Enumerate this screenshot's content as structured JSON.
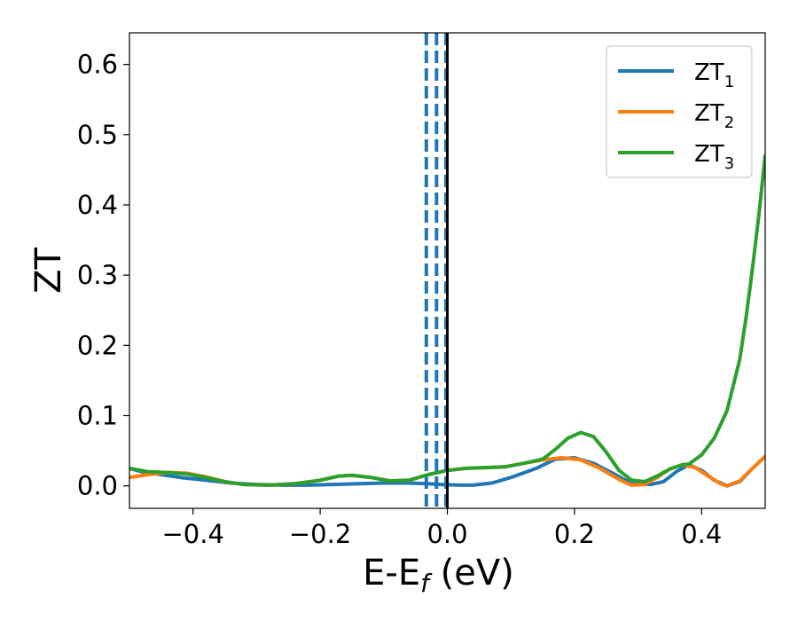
{
  "chart_data": {
    "type": "line",
    "xlabel_main": "E-E",
    "xlabel_sub": "f",
    "xlabel_rest": " (eV)",
    "ylabel": "ZT",
    "xlim": [
      -0.5,
      0.5
    ],
    "ylim": [
      -0.032,
      0.645
    ],
    "xticks": [
      -0.4,
      -0.2,
      0.0,
      0.2,
      0.4
    ],
    "xtick_labels": [
      "−0.4",
      "−0.2",
      "0.0",
      "0.2",
      "0.4"
    ],
    "yticks": [
      0.0,
      0.1,
      0.2,
      0.3,
      0.4,
      0.5,
      0.6
    ],
    "ytick_labels": [
      "0.0",
      "0.1",
      "0.2",
      "0.3",
      "0.4",
      "0.5",
      "0.6"
    ],
    "grid": false,
    "legend_position": "top-right",
    "vlines": [
      {
        "x": -0.033,
        "style": "dashed",
        "color": "#1f77b4"
      },
      {
        "x": -0.017,
        "style": "dashed",
        "color": "#1f77b4"
      },
      {
        "x": -0.002,
        "style": "dashed",
        "color": "#1f77b4"
      },
      {
        "x": 0.0,
        "style": "solid",
        "color": "#000000"
      }
    ],
    "series": [
      {
        "name": "ZT",
        "sub": "1",
        "color": "#1f77b4",
        "points": [
          [
            -0.5,
            0.025
          ],
          [
            -0.48,
            0.02
          ],
          [
            -0.45,
            0.016
          ],
          [
            -0.42,
            0.012
          ],
          [
            -0.38,
            0.008
          ],
          [
            -0.34,
            0.004
          ],
          [
            -0.3,
            0.002
          ],
          [
            -0.26,
            0.001
          ],
          [
            -0.22,
            0.001
          ],
          [
            -0.18,
            0.002
          ],
          [
            -0.14,
            0.003
          ],
          [
            -0.1,
            0.004
          ],
          [
            -0.06,
            0.004
          ],
          [
            -0.03,
            0.003
          ],
          [
            -0.01,
            0.002
          ],
          [
            0.02,
            0.001
          ],
          [
            0.04,
            0.001
          ],
          [
            0.07,
            0.004
          ],
          [
            0.1,
            0.012
          ],
          [
            0.14,
            0.025
          ],
          [
            0.17,
            0.038
          ],
          [
            0.2,
            0.04
          ],
          [
            0.23,
            0.032
          ],
          [
            0.26,
            0.018
          ],
          [
            0.28,
            0.008
          ],
          [
            0.3,
            0.003
          ],
          [
            0.32,
            0.002
          ],
          [
            0.34,
            0.006
          ],
          [
            0.36,
            0.02
          ],
          [
            0.38,
            0.03
          ],
          [
            0.4,
            0.022
          ],
          [
            0.42,
            0.008
          ],
          [
            0.44,
            0.0
          ],
          [
            0.46,
            0.006
          ],
          [
            0.48,
            0.025
          ],
          [
            0.5,
            0.042
          ]
        ]
      },
      {
        "name": "ZT",
        "sub": "2",
        "color": "#ff7f0e",
        "points": [
          [
            -0.5,
            0.012
          ],
          [
            -0.47,
            0.016
          ],
          [
            -0.44,
            0.019
          ],
          [
            -0.41,
            0.018
          ],
          [
            -0.38,
            0.013
          ],
          [
            -0.35,
            0.006
          ],
          [
            -0.32,
            0.002
          ],
          [
            -0.28,
            0.001
          ],
          [
            -0.24,
            0.003
          ],
          [
            -0.2,
            0.008
          ],
          [
            -0.17,
            0.014
          ],
          [
            -0.15,
            0.015
          ],
          [
            -0.12,
            0.012
          ],
          [
            -0.09,
            0.007
          ],
          [
            -0.06,
            0.008
          ],
          [
            -0.03,
            0.016
          ],
          [
            0.0,
            0.022
          ],
          [
            0.03,
            0.025
          ],
          [
            0.06,
            0.026
          ],
          [
            0.09,
            0.027
          ],
          [
            0.12,
            0.032
          ],
          [
            0.15,
            0.037
          ],
          [
            0.18,
            0.04
          ],
          [
            0.21,
            0.037
          ],
          [
            0.24,
            0.025
          ],
          [
            0.27,
            0.009
          ],
          [
            0.29,
            0.001
          ],
          [
            0.31,
            0.002
          ],
          [
            0.33,
            0.012
          ],
          [
            0.35,
            0.024
          ],
          [
            0.37,
            0.03
          ],
          [
            0.39,
            0.026
          ],
          [
            0.41,
            0.014
          ],
          [
            0.43,
            0.003
          ],
          [
            0.44,
            0.0
          ],
          [
            0.46,
            0.007
          ],
          [
            0.48,
            0.025
          ],
          [
            0.5,
            0.042
          ]
        ]
      },
      {
        "name": "ZT",
        "sub": "3",
        "color": "#2ca02c",
        "points": [
          [
            -0.5,
            0.025
          ],
          [
            -0.47,
            0.02
          ],
          [
            -0.44,
            0.019
          ],
          [
            -0.41,
            0.017
          ],
          [
            -0.38,
            0.012
          ],
          [
            -0.35,
            0.006
          ],
          [
            -0.32,
            0.002
          ],
          [
            -0.28,
            0.001
          ],
          [
            -0.24,
            0.003
          ],
          [
            -0.2,
            0.008
          ],
          [
            -0.17,
            0.014
          ],
          [
            -0.15,
            0.015
          ],
          [
            -0.12,
            0.012
          ],
          [
            -0.09,
            0.007
          ],
          [
            -0.06,
            0.008
          ],
          [
            -0.03,
            0.016
          ],
          [
            0.0,
            0.022
          ],
          [
            0.03,
            0.025
          ],
          [
            0.06,
            0.026
          ],
          [
            0.09,
            0.027
          ],
          [
            0.12,
            0.032
          ],
          [
            0.15,
            0.038
          ],
          [
            0.17,
            0.052
          ],
          [
            0.19,
            0.068
          ],
          [
            0.21,
            0.076
          ],
          [
            0.23,
            0.07
          ],
          [
            0.25,
            0.048
          ],
          [
            0.27,
            0.022
          ],
          [
            0.29,
            0.008
          ],
          [
            0.31,
            0.006
          ],
          [
            0.33,
            0.014
          ],
          [
            0.35,
            0.024
          ],
          [
            0.37,
            0.03
          ],
          [
            0.38,
            0.031
          ],
          [
            0.4,
            0.044
          ],
          [
            0.42,
            0.068
          ],
          [
            0.44,
            0.107
          ],
          [
            0.46,
            0.18
          ],
          [
            0.47,
            0.24
          ],
          [
            0.48,
            0.31
          ],
          [
            0.49,
            0.385
          ],
          [
            0.5,
            0.47
          ]
        ]
      }
    ]
  }
}
